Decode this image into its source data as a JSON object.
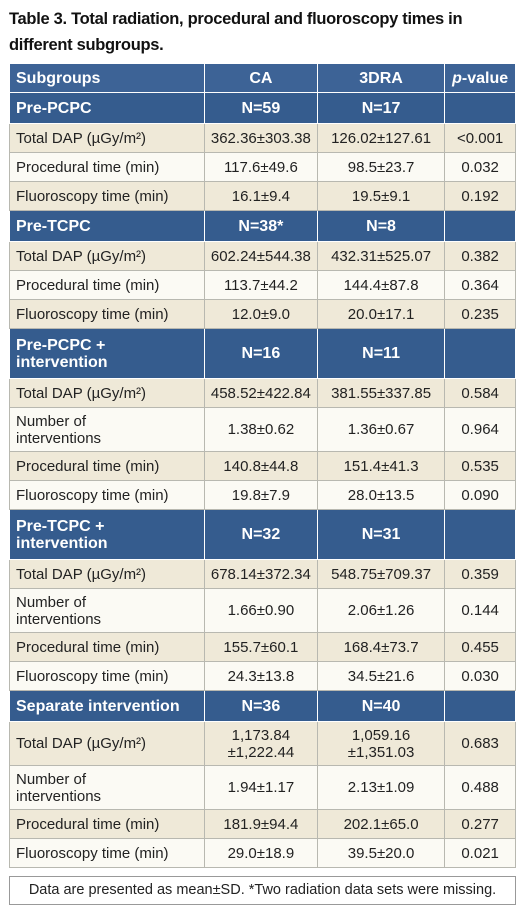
{
  "title": "Table 3. Total radiation, procedural and fluoroscopy times in different subgroups.",
  "table": {
    "header": [
      "Subgroups",
      "CA",
      "3DRA",
      "p-value"
    ],
    "groups": [
      {
        "label": "Pre-PCPC",
        "ca": "N=59",
        "dra": "N=17",
        "rows": [
          [
            "Total DAP (µGy/m²)",
            "362.36±303.38",
            "126.02±127.61",
            "<0.001"
          ],
          [
            "Procedural time (min)",
            "117.6±49.6",
            "98.5±23.7",
            "0.032"
          ],
          [
            "Fluoroscopy time (min)",
            "16.1±9.4",
            "19.5±9.1",
            "0.192"
          ]
        ]
      },
      {
        "label": "Pre-TCPC",
        "ca": "N=38*",
        "dra": "N=8",
        "rows": [
          [
            "Total DAP (µGy/m²)",
            "602.24±544.38",
            "432.31±525.07",
            "0.382"
          ],
          [
            "Procedural time (min)",
            "113.7±44.2",
            "144.4±87.8",
            "0.364"
          ],
          [
            "Fluoroscopy time (min)",
            "12.0±9.0",
            "20.0±17.1",
            "0.235"
          ]
        ]
      },
      {
        "label": "Pre-PCPC +\nintervention",
        "ca": "N=16",
        "dra": "N=11",
        "rows": [
          [
            "Total DAP (µGy/m²)",
            "458.52±422.84",
            "381.55±337.85",
            "0.584"
          ],
          [
            "Number of\ninterventions",
            "1.38±0.62",
            "1.36±0.67",
            "0.964"
          ],
          [
            "Procedural time (min)",
            "140.8±44.8",
            "151.4±41.3",
            "0.535"
          ],
          [
            "Fluoroscopy time (min)",
            "19.8±7.9",
            "28.0±13.5",
            "0.090"
          ]
        ]
      },
      {
        "label": "Pre-TCPC +\nintervention",
        "ca": "N=32",
        "dra": "N=31",
        "rows": [
          [
            "Total DAP (µGy/m²)",
            "678.14±372.34",
            "548.75±709.37",
            "0.359"
          ],
          [
            "Number of\ninterventions",
            "1.66±0.90",
            "2.06±1.26",
            "0.144"
          ],
          [
            "Procedural time (min)",
            "155.7±60.1",
            "168.4±73.7",
            "0.455"
          ],
          [
            "Fluoroscopy time (min)",
            "24.3±13.8",
            "34.5±21.6",
            "0.030"
          ]
        ]
      },
      {
        "label": "Separate intervention",
        "ca": "N=36",
        "dra": "N=40",
        "rows": [
          [
            "Total DAP (µGy/m²)",
            "1,173.84\n±1,222.44",
            "1,059.16\n±1,351.03",
            "0.683"
          ],
          [
            "Number of\ninterventions",
            "1.94±1.17",
            "2.13±1.09",
            "0.488"
          ],
          [
            "Procedural time (min)",
            "181.9±94.4",
            "202.1±65.0",
            "0.277"
          ],
          [
            "Fluoroscopy time (min)",
            "29.0±18.9",
            "39.5±20.0",
            "0.021"
          ]
        ]
      }
    ]
  },
  "footnote": "Data are presented as mean±SD. *Two radiation data sets were missing."
}
